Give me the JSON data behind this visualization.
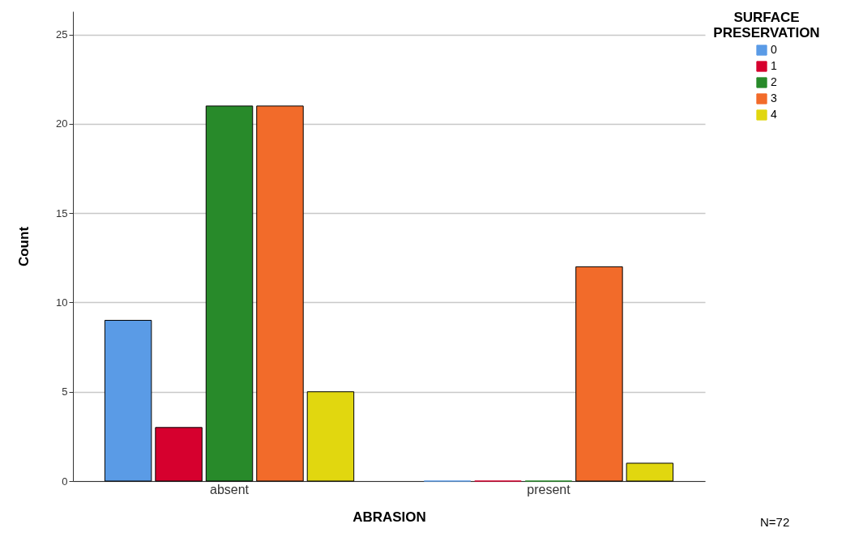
{
  "chart_data": {
    "type": "bar",
    "xlabel": "ABRASION",
    "ylabel": "Count",
    "legend_title": "SURFACE PRESERVATION",
    "categories": [
      "absent",
      "present"
    ],
    "series": [
      {
        "name": "0",
        "color": "#5a9be6",
        "values": [
          9,
          0
        ]
      },
      {
        "name": "1",
        "color": "#d6002e",
        "values": [
          3,
          0
        ]
      },
      {
        "name": "2",
        "color": "#288a2a",
        "values": [
          21,
          0
        ]
      },
      {
        "name": "3",
        "color": "#f26b2a",
        "values": [
          21,
          12
        ]
      },
      {
        "name": "4",
        "color": "#e1d70f",
        "values": [
          5,
          1
        ]
      }
    ],
    "ylim": [
      0,
      26.3
    ],
    "yticks": [
      0,
      5,
      10,
      15,
      20,
      25
    ],
    "grid": "y",
    "legend": "top right",
    "annotations": [
      "N=72"
    ]
  }
}
